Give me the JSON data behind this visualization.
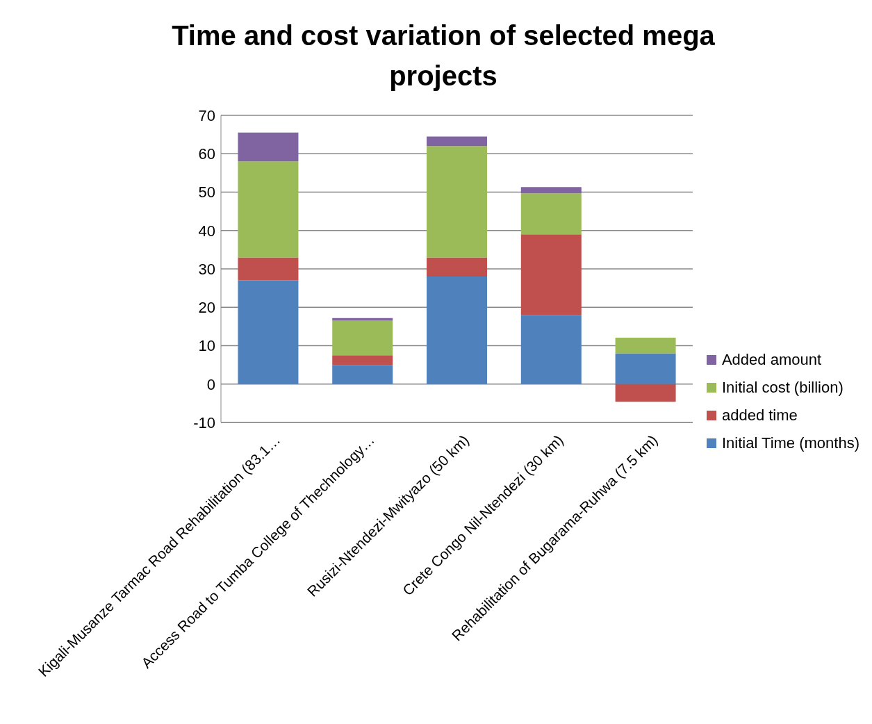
{
  "chart_data": {
    "type": "bar",
    "title": "Time and cost variation of selected mega projects",
    "stacked": true,
    "categories": [
      "Kigali-Musanze Tarmac Road Rehabilitation (83.1…",
      "Access Road to Tumba College of Thechnology…",
      "Rusizi-Ntendezi-Mwityazo (50 km)",
      "Crete Congo Nil-Ntendezi (30 km)",
      "Rehabilitation of Bugarama-Ruhwa (7.5 km)"
    ],
    "series": [
      {
        "name": "Initial Time (months)",
        "color": "#4f81bd",
        "values": [
          27,
          5,
          28,
          18,
          8
        ]
      },
      {
        "name": "added time",
        "color": "#c0504d",
        "values": [
          6,
          2.5,
          5,
          21,
          -4.6
        ]
      },
      {
        "name": "Initial cost (billion)",
        "color": "#9bbb59",
        "values": [
          25,
          9,
          29,
          10.7,
          4.1
        ]
      },
      {
        "name": "Added amount",
        "color": "#8064a2",
        "values": [
          7.5,
          0.7,
          2.5,
          1.6,
          null
        ]
      }
    ],
    "ylim": [
      -10,
      70
    ],
    "yticks": [
      -10,
      0,
      10,
      20,
      30,
      40,
      50,
      60,
      70
    ],
    "grid": "y",
    "legend": "right"
  }
}
